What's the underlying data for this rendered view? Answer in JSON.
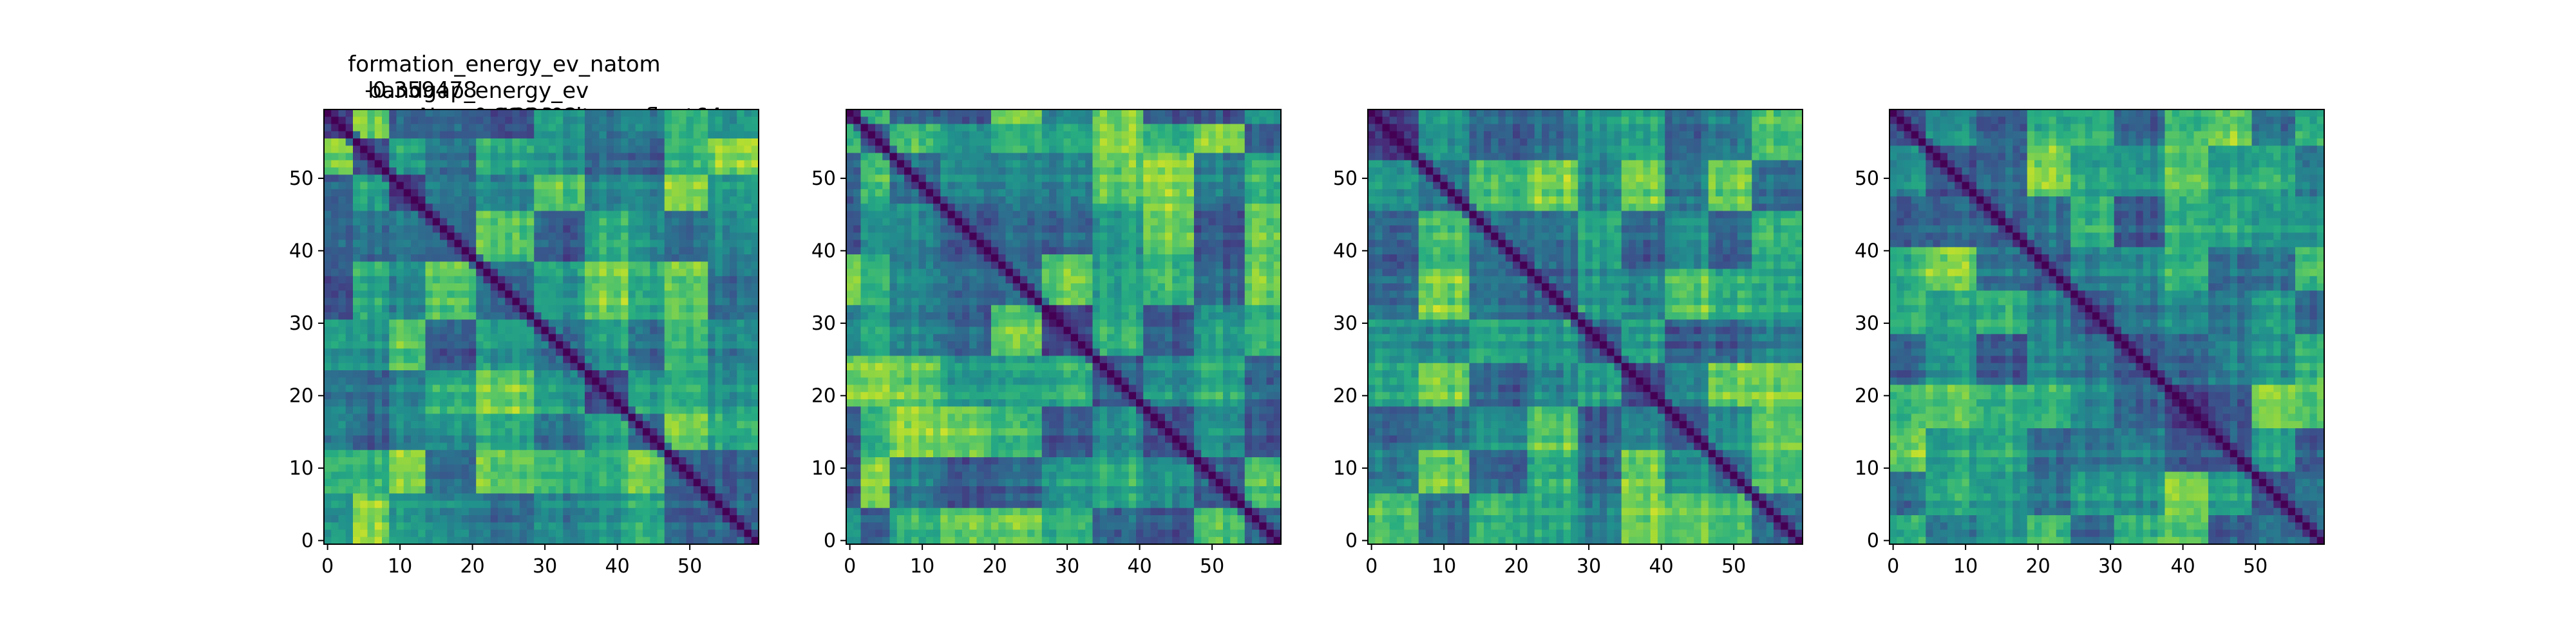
{
  "figure_title": {
    "line1_label": "formation_energy_ev_natom",
    "line1_value": "-0.359478",
    "line2_label": "bandgap_energy_ev",
    "line2_value": "0.330402",
    "line3": "Name: 1228, dtype: float64"
  },
  "chart_data": [
    {
      "type": "heatmap",
      "colormap": "viridis",
      "size": 60,
      "seed": 11,
      "xticks": [
        0,
        10,
        20,
        30,
        40,
        50
      ],
      "yticks": [
        0,
        10,
        20,
        30,
        40,
        50
      ],
      "xlim": [
        -0.5,
        59.5
      ],
      "ylim": [
        59.5,
        -0.5
      ],
      "blocks": [
        0,
        4,
        9,
        14,
        21,
        29,
        36,
        42,
        47,
        53,
        60
      ],
      "diagonal_value": 0
    },
    {
      "type": "heatmap",
      "colormap": "viridis",
      "size": 60,
      "seed": 23,
      "xticks": [
        0,
        10,
        20,
        30,
        40,
        50
      ],
      "yticks": [
        0,
        10,
        20,
        30,
        40,
        50
      ],
      "xlim": [
        -0.5,
        59.5
      ],
      "ylim": [
        59.5,
        -0.5
      ],
      "blocks": [
        0,
        2,
        6,
        13,
        20,
        27,
        34,
        41,
        48,
        55,
        60
      ],
      "diagonal_value": 0
    },
    {
      "type": "heatmap",
      "colormap": "viridis",
      "size": 60,
      "seed": 37,
      "xticks": [
        0,
        10,
        20,
        30,
        40,
        50
      ],
      "yticks": [
        0,
        10,
        20,
        30,
        40,
        50
      ],
      "xlim": [
        -0.5,
        59.5
      ],
      "ylim": [
        59.5,
        -0.5
      ],
      "blocks": [
        0,
        7,
        14,
        22,
        29,
        35,
        41,
        47,
        53,
        60
      ],
      "diagonal_value": 0
    },
    {
      "type": "heatmap",
      "colormap": "viridis",
      "size": 60,
      "seed": 53,
      "xticks": [
        0,
        10,
        20,
        30,
        40,
        50
      ],
      "yticks": [
        0,
        10,
        20,
        30,
        40,
        50
      ],
      "xlim": [
        -0.5,
        59.5
      ],
      "ylim": [
        59.5,
        -0.5
      ],
      "blocks": [
        0,
        5,
        12,
        19,
        25,
        31,
        38,
        44,
        50,
        56,
        60
      ],
      "diagonal_value": 0
    }
  ]
}
